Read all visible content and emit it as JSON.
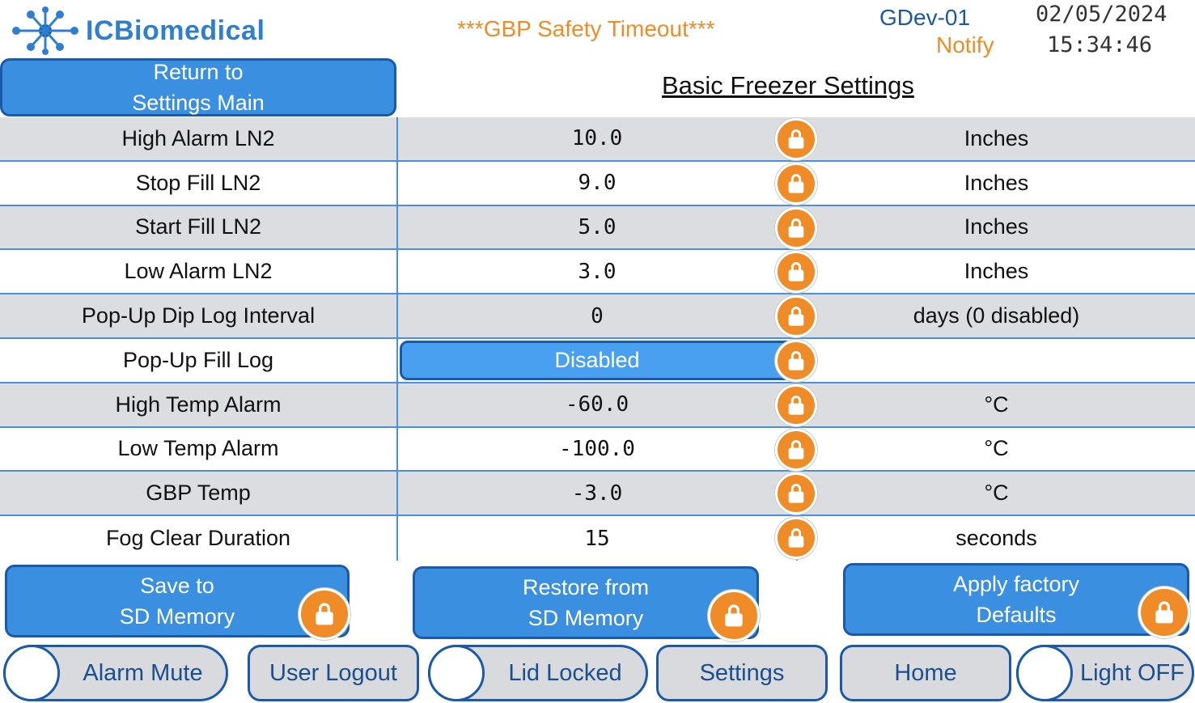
{
  "header": {
    "brand": "ICBiomedical",
    "alert": "***GBP Safety Timeout***",
    "device": "GDev-01",
    "status": "Notify",
    "date": "02/05/2024",
    "time": "15:34:46"
  },
  "nav": {
    "return_label_1": "Return to",
    "return_label_2": "Settings Main"
  },
  "page": {
    "title": "Basic Freezer Settings"
  },
  "settings": [
    {
      "label": "High Alarm LN2",
      "value": "10.0",
      "unit": "Inches"
    },
    {
      "label": "Stop Fill LN2",
      "value": "9.0",
      "unit": "Inches"
    },
    {
      "label": "Start Fill LN2",
      "value": "5.0",
      "unit": "Inches"
    },
    {
      "label": "Low Alarm LN2",
      "value": "3.0",
      "unit": "Inches"
    },
    {
      "label": "Pop-Up Dip Log Interval",
      "value": "0",
      "unit": "days (0 disabled)"
    },
    {
      "label": "Pop-Up Fill Log",
      "value": "Disabled",
      "unit": ""
    },
    {
      "label": "High Temp Alarm",
      "value": "-60.0",
      "unit": "°C"
    },
    {
      "label": "Low Temp Alarm",
      "value": "-100.0",
      "unit": "°C"
    },
    {
      "label": "GBP Temp",
      "value": "-3.0",
      "unit": "°C"
    },
    {
      "label": "Fog Clear Duration",
      "value": "15",
      "unit": "seconds"
    }
  ],
  "actions": {
    "save_1": "Save to",
    "save_2": "SD Memory",
    "restore_1": "Restore from",
    "restore_2": "SD Memory",
    "factory_1": "Apply factory",
    "factory_2": "Defaults"
  },
  "footer": {
    "alarm_mute": "Alarm Mute",
    "user_logout": "User Logout",
    "lid_locked": "Lid Locked",
    "settings": "Settings",
    "home": "Home",
    "light": "Light OFF"
  },
  "colors": {
    "accent": "#3a8fe0",
    "border": "#1a5aa8",
    "orange": "#f08c28"
  }
}
